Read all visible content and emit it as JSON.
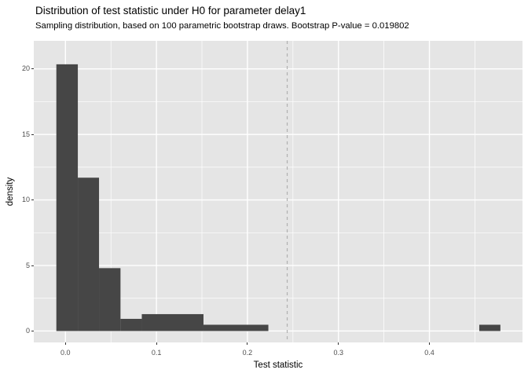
{
  "header": {
    "title": "Distribution of test statistic under H0 for parameter delay1",
    "subtitle": "Sampling distribution, based on 100 parametric bootstrap draws. Bootstrap P-value = 0.019802"
  },
  "chart_data": {
    "type": "bar",
    "subtype": "histogram",
    "title": "Distribution of test statistic under H0 for parameter delay1",
    "subtitle": "Sampling distribution, based on 100 parametric bootstrap draws. Bootstrap P-value = 0.019802",
    "xlabel": "Test statistic",
    "ylabel": "density",
    "sample_size": 100,
    "p_value": 0.019802,
    "x_domain": [
      -0.0348,
      0.5023
    ],
    "y_domain": [
      -0.87,
      22.14
    ],
    "x_ticks": [
      {
        "value": 0.0,
        "label": "0.0"
      },
      {
        "value": 0.1,
        "label": "0.1"
      },
      {
        "value": 0.2,
        "label": "0.2"
      },
      {
        "value": 0.3,
        "label": "0.3"
      },
      {
        "value": 0.4,
        "label": "0.4"
      }
    ],
    "y_ticks": [
      {
        "value": 0,
        "label": "0"
      },
      {
        "value": 5,
        "label": "5"
      },
      {
        "value": 10,
        "label": "10"
      },
      {
        "value": 15,
        "label": "15"
      },
      {
        "value": 20,
        "label": "20"
      }
    ],
    "x_minor": [
      0.05,
      0.15,
      0.25,
      0.35,
      0.45
    ],
    "y_minor": [
      2.5,
      7.5,
      12.5,
      17.5
    ],
    "bins": [
      {
        "x0": -0.01,
        "x1": 0.0136,
        "density": 20.35
      },
      {
        "x0": 0.0136,
        "x1": 0.0369,
        "density": 11.7
      },
      {
        "x0": 0.0369,
        "x1": 0.0605,
        "density": 4.8
      },
      {
        "x0": 0.0605,
        "x1": 0.0839,
        "density": 0.93
      },
      {
        "x0": 0.0839,
        "x1": 0.1517,
        "density": 1.29
      },
      {
        "x0": 0.1517,
        "x1": 0.223,
        "density": 0.48
      },
      {
        "x0": 0.4548,
        "x1": 0.478,
        "density": 0.48
      }
    ],
    "vline": {
      "x": 0.2437,
      "style": "dashed"
    },
    "grid": true,
    "legend": "none",
    "colors": {
      "bar": "#464646",
      "panel": "#E5E5E5",
      "grid": "#FFFFFF",
      "vline": "#B0B0B0",
      "tick_mark": "#333333",
      "tick_label": "#4D4D4D",
      "text": "#000000"
    }
  }
}
